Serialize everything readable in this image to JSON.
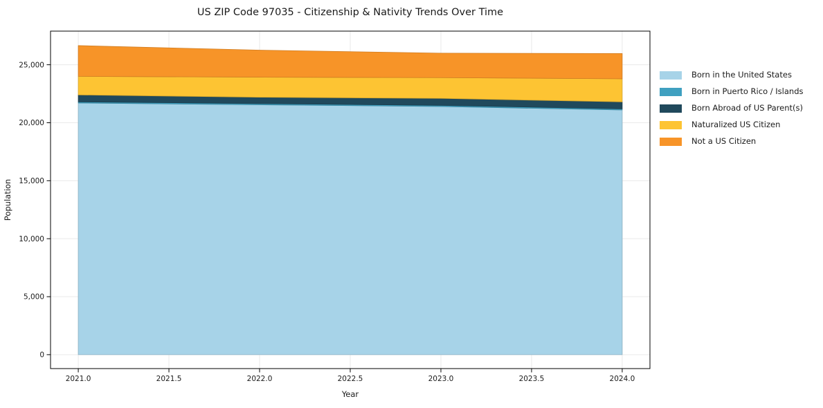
{
  "title": "US ZIP Code 97035 - Citizenship & Nativity Trends Over Time",
  "chart_data": {
    "type": "area",
    "stacked": true,
    "title": "US ZIP Code 97035 - Citizenship & Nativity Trends Over Time",
    "xlabel": "Year",
    "ylabel": "Population",
    "x": [
      2021,
      2022,
      2023,
      2024
    ],
    "series": [
      {
        "name": "Born in the United States",
        "color": "#a7d3e8",
        "values": [
          21700,
          21550,
          21400,
          21100
        ]
      },
      {
        "name": "Born in Puerto Rico / Islands",
        "color": "#3fa0c0",
        "values": [
          100,
          100,
          100,
          100
        ]
      },
      {
        "name": "Born Abroad of US Parent(s)",
        "color": "#20495c",
        "values": [
          600,
          550,
          600,
          600
        ]
      },
      {
        "name": "Naturalized US Citizen",
        "color": "#fdc433",
        "values": [
          1600,
          1730,
          1790,
          1990
        ]
      },
      {
        "name": "Not a US Citizen",
        "color": "#f79428",
        "values": [
          2650,
          2330,
          2110,
          2180
        ]
      }
    ],
    "xticks": {
      "values": [
        2021.0,
        2021.5,
        2022.0,
        2022.5,
        2023.0,
        2023.5,
        2024.0
      ],
      "labels": [
        "2021.0",
        "2021.5",
        "2022.0",
        "2022.5",
        "2023.0",
        "2023.5",
        "2024.0"
      ]
    },
    "yticks": {
      "values": [
        0,
        5000,
        10000,
        15000,
        20000,
        25000
      ],
      "labels": [
        "0",
        "5,000",
        "10,000",
        "15,000",
        "20,000",
        "25,000"
      ]
    },
    "xlim": [
      2020.847,
      2024.153
    ],
    "ylim": [
      -1200,
      27900
    ],
    "grid": true,
    "grid_color": "#e9e9e9",
    "legend_position": "right-outside"
  }
}
